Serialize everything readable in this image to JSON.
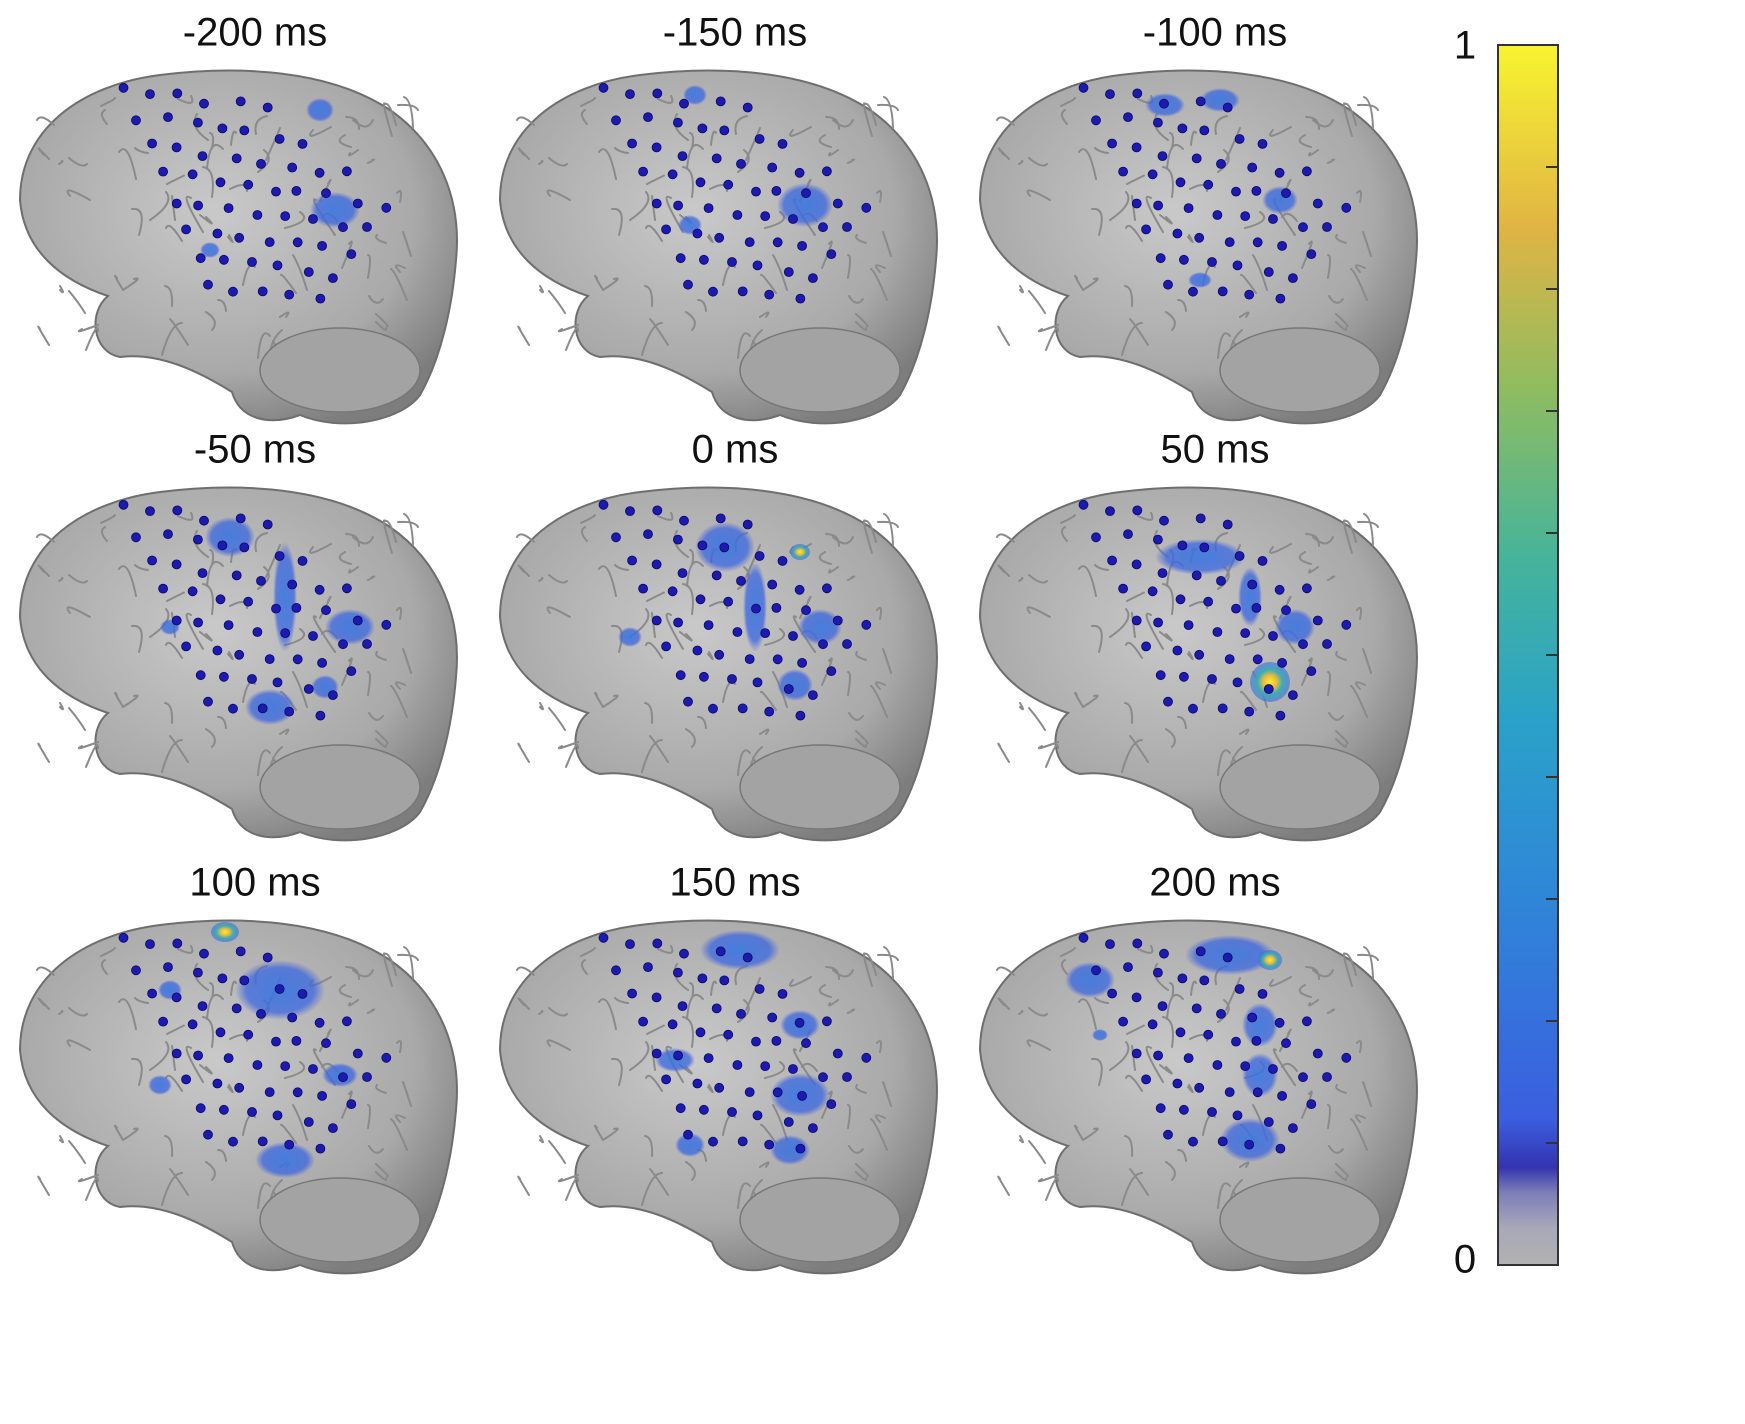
{
  "panels": [
    {
      "title": "-200 ms"
    },
    {
      "title": "-150 ms"
    },
    {
      "title": "-100 ms"
    },
    {
      "title": "-50 ms"
    },
    {
      "title": "0 ms"
    },
    {
      "title": "50 ms"
    },
    {
      "title": "100 ms"
    },
    {
      "title": "150 ms"
    },
    {
      "title": "200 ms"
    }
  ],
  "colorbar": {
    "lim": [
      0,
      1
    ],
    "ticks": [
      0.1,
      0.2,
      0.3,
      0.4,
      0.5,
      0.6,
      0.7,
      0.8,
      0.9
    ]
  }
}
